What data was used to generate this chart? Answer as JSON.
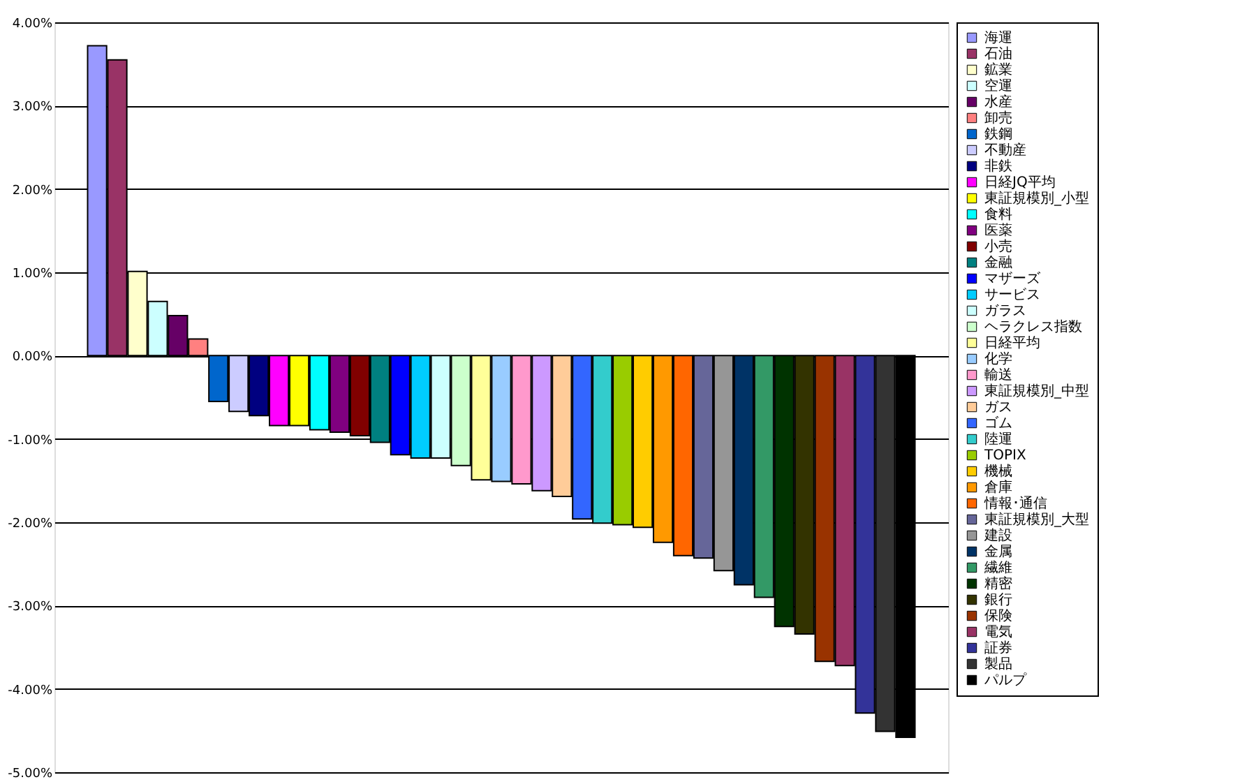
{
  "chart_data": {
    "type": "bar",
    "categories": [
      null
    ],
    "series": [
      {
        "name": "海運",
        "color": "#9999ff",
        "values": [
          3.72
        ]
      },
      {
        "name": "石油",
        "color": "#993366",
        "values": [
          3.55
        ]
      },
      {
        "name": "鉱業",
        "color": "#ffffcc",
        "values": [
          1.01
        ]
      },
      {
        "name": "空運",
        "color": "#ccffff",
        "values": [
          0.65
        ]
      },
      {
        "name": "水産",
        "color": "#660066",
        "values": [
          0.48
        ]
      },
      {
        "name": "卸売",
        "color": "#ff8080",
        "values": [
          0.2
        ]
      },
      {
        "name": "鉄鋼",
        "color": "#0066cc",
        "values": [
          -0.55
        ]
      },
      {
        "name": "不動産",
        "color": "#ccccff",
        "values": [
          -0.67
        ]
      },
      {
        "name": "非鉄",
        "color": "#000080",
        "values": [
          -0.72
        ]
      },
      {
        "name": "日経JQ平均",
        "color": "#ff00ff",
        "values": [
          -0.84
        ]
      },
      {
        "name": "東証規模別_小型",
        "color": "#ffff00",
        "values": [
          -0.84
        ]
      },
      {
        "name": "食料",
        "color": "#00ffff",
        "values": [
          -0.89
        ]
      },
      {
        "name": "医薬",
        "color": "#800080",
        "values": [
          -0.92
        ]
      },
      {
        "name": "小売",
        "color": "#800000",
        "values": [
          -0.96
        ]
      },
      {
        "name": "金融",
        "color": "#008080",
        "values": [
          -1.04
        ]
      },
      {
        "name": "マザーズ",
        "color": "#0000ff",
        "values": [
          -1.19
        ]
      },
      {
        "name": "サービス",
        "color": "#00ccff",
        "values": [
          -1.23
        ]
      },
      {
        "name": "ガラス",
        "color": "#ccfffe",
        "values": [
          -1.23
        ]
      },
      {
        "name": "ヘラクレス指数",
        "color": "#ccffcc",
        "values": [
          -1.32
        ]
      },
      {
        "name": "日経平均",
        "color": "#ffff99",
        "values": [
          -1.49
        ]
      },
      {
        "name": "化学",
        "color": "#99ccff",
        "values": [
          -1.51
        ]
      },
      {
        "name": "輸送",
        "color": "#ff99cc",
        "values": [
          -1.54
        ]
      },
      {
        "name": "東証規模別_中型",
        "color": "#cc99ff",
        "values": [
          -1.62
        ]
      },
      {
        "name": "ガス",
        "color": "#ffcc99",
        "values": [
          -1.69
        ]
      },
      {
        "name": "ゴム",
        "color": "#3366ff",
        "values": [
          -1.96
        ]
      },
      {
        "name": "陸運",
        "color": "#33cccc",
        "values": [
          -2.01
        ]
      },
      {
        "name": "TOPIX",
        "color": "#99cc00",
        "values": [
          -2.03
        ]
      },
      {
        "name": "機械",
        "color": "#ffcc00",
        "values": [
          -2.06
        ]
      },
      {
        "name": "倉庫",
        "color": "#ff9900",
        "values": [
          -2.24
        ]
      },
      {
        "name": "情報･通信",
        "color": "#ff6600",
        "values": [
          -2.4
        ]
      },
      {
        "name": "東証規模別_大型",
        "color": "#666699",
        "values": [
          -2.43
        ]
      },
      {
        "name": "建設",
        "color": "#969696",
        "values": [
          -2.58
        ]
      },
      {
        "name": "金属",
        "color": "#003366",
        "values": [
          -2.75
        ]
      },
      {
        "name": "繊維",
        "color": "#339966",
        "values": [
          -2.9
        ]
      },
      {
        "name": "精密",
        "color": "#003300",
        "values": [
          -3.25
        ]
      },
      {
        "name": "銀行",
        "color": "#333300",
        "values": [
          -3.34
        ]
      },
      {
        "name": "保険",
        "color": "#993300",
        "values": [
          -3.67
        ]
      },
      {
        "name": "電気",
        "color": "#993365",
        "values": [
          -3.72
        ]
      },
      {
        "name": "証券",
        "color": "#333399",
        "values": [
          -4.29
        ]
      },
      {
        "name": "製品",
        "color": "#333333",
        "values": [
          -4.51
        ]
      },
      {
        "name": "パルプ",
        "color": "#000000",
        "values": [
          -4.58
        ]
      }
    ],
    "ylim": [
      -5,
      4
    ],
    "yticks": [
      {
        "value": 4,
        "label": "4.00%"
      },
      {
        "value": 3,
        "label": "3.00%"
      },
      {
        "value": 2,
        "label": "2.00%"
      },
      {
        "value": 1,
        "label": "1.00%"
      },
      {
        "value": 0,
        "label": "0.00%"
      },
      {
        "value": -1,
        "label": "-1.00%"
      },
      {
        "value": -2,
        "label": "-2.00%"
      },
      {
        "value": -3,
        "label": "-3.00%"
      },
      {
        "value": -4,
        "label": "-4.00%"
      },
      {
        "value": -5,
        "label": "-5.00%"
      }
    ],
    "grid": "y",
    "legend": "right",
    "tick_labels": "y"
  }
}
